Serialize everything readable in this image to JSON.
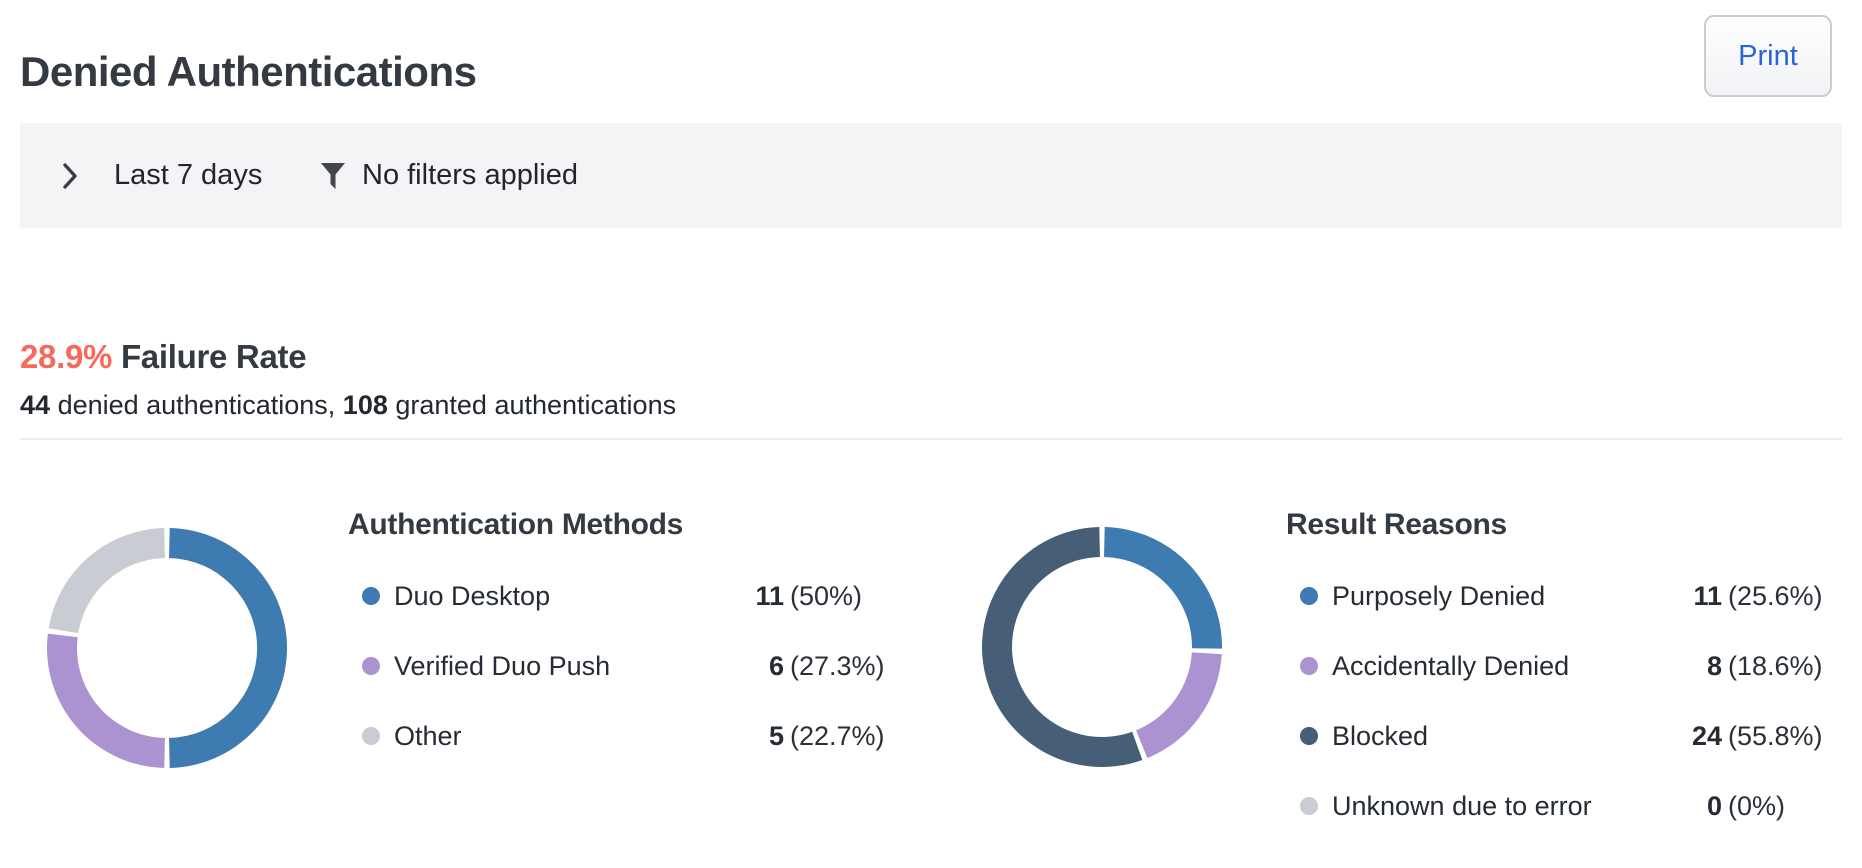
{
  "page": {
    "title": "Denied Authentications"
  },
  "header": {
    "print_label": "Print"
  },
  "filter_bar": {
    "date_range": "Last 7 days",
    "filters_status": "No filters applied"
  },
  "summary": {
    "failure_rate": "28.9%",
    "failure_rate_label": "Failure Rate",
    "denied_count": "44",
    "denied_text": "denied authentications,",
    "granted_count": "108",
    "granted_text": "granted authentications"
  },
  "colors": {
    "failure_rate_accent": "#f56a5b",
    "print_button_text": "#2a64d8",
    "segment_blue": "#3e7bb1",
    "segment_purple": "#ab92d0",
    "segment_gray": "#c9ccd3",
    "segment_slate": "#465e76"
  },
  "chart_data": [
    {
      "type": "pie",
      "donut": true,
      "title": "Authentication Methods",
      "categories": [
        "Duo Desktop",
        "Verified Duo Push",
        "Other"
      ],
      "values": [
        11,
        6,
        5
      ],
      "percent_labels": [
        "(50%)",
        "(27.3%)",
        "(22.7%)"
      ],
      "colors": [
        "#3e7bb1",
        "#ab92d0",
        "#c9ccd3"
      ],
      "start_angle_deg": 0,
      "direction": "clockwise",
      "legend_position": "right"
    },
    {
      "type": "pie",
      "donut": true,
      "title": "Result Reasons",
      "categories": [
        "Purposely Denied",
        "Accidentally Denied",
        "Blocked",
        "Unknown due to error"
      ],
      "values": [
        11,
        8,
        24,
        0
      ],
      "percent_labels": [
        "(25.6%)",
        "(18.6%)",
        "(55.8%)",
        "(0%)"
      ],
      "colors": [
        "#3e7bb1",
        "#ab92d0",
        "#465e76",
        "#c9ccd3"
      ],
      "start_angle_deg": 0,
      "direction": "clockwise",
      "legend_position": "right"
    }
  ]
}
